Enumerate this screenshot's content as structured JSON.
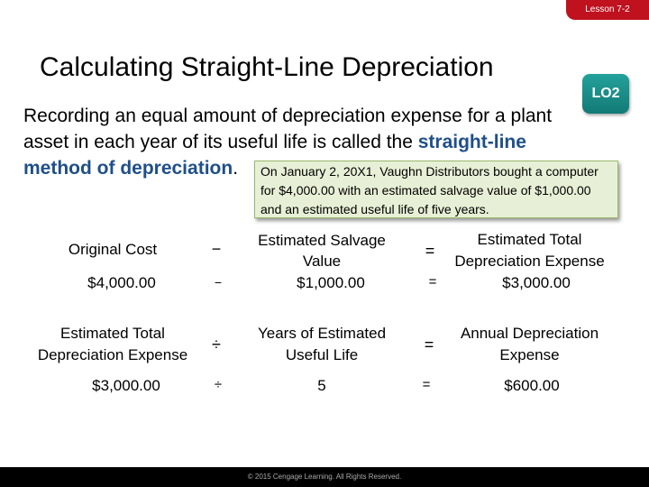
{
  "lesson_tab": "Lesson 7-2",
  "title": "Calculating Straight-Line Depreciation",
  "lo_badge": "LO2",
  "intro": {
    "text": "Recording an equal amount of depreciation expense for a plant asset in each year of its useful life is called the ",
    "term": "straight-line method of depreciation",
    "end": "."
  },
  "callout": "On January 2, 20X1, Vaughn Distributors bought a computer for $4,000.00 with an estimated salvage value of $1,000.00 and an estimated useful life of five years.",
  "equation1": {
    "original_cost_label": "Original Cost",
    "original_cost_value": "$4,000.00",
    "minus_op": "−",
    "minus_op_row2": "−",
    "salvage_label_line1": "Estimated Salvage",
    "salvage_label_line2": "Value",
    "salvage_value": "$1,000.00",
    "equals_op": "=",
    "equals_op_row2": "=",
    "total_label_line1": "Estimated Total",
    "total_label_line2": "Depreciation Expense",
    "total_value": "$3,000.00"
  },
  "equation2": {
    "total_label_line1": "Estimated Total",
    "total_label_line2": "Depreciation Expense",
    "total_value": "$3,000.00",
    "divide_op": "÷",
    "divide_op_row2": "÷",
    "years_label_line1": "Years of Estimated",
    "years_label_line2": "Useful Life",
    "years_value": "5",
    "equals_op": "=",
    "equals_op_row2": "=",
    "annual_label_line1": "Annual Depreciation",
    "annual_label_line2": "Expense",
    "annual_value": "$600.00"
  },
  "footer": "© 2015 Cengage Learning. All Rights Reserved."
}
